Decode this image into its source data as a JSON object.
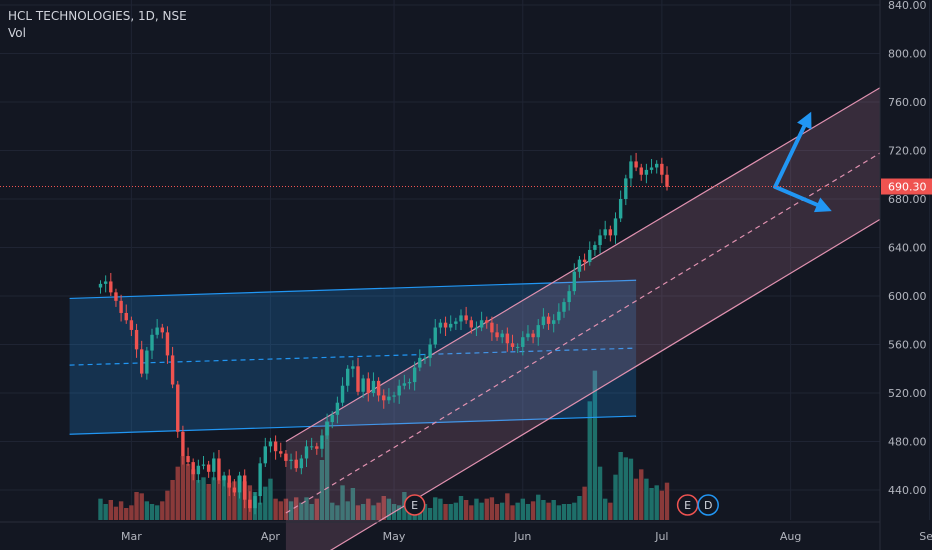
{
  "chart_data": {
    "type": "candlestick",
    "title": "HCL TECHNOLOGIES, 1D, NSE",
    "indicator": "Vol",
    "colors": {
      "background": "#131722",
      "grid": "#1f2433",
      "axis_text": "#b2b5be",
      "up": "#26a69a",
      "down": "#ef5350",
      "volume_up": "#1e6f69",
      "volume_down": "#8a3a3a",
      "blue_channel": "#2196f3",
      "pink_channel": "#e091b0",
      "arrow": "#2196f3",
      "price_line": "#ef5350"
    },
    "y_axis": {
      "ticks": [
        840,
        800,
        760,
        720,
        680,
        640,
        600,
        560,
        520,
        480,
        440
      ],
      "tick_labels": [
        "840.00",
        "800.00",
        "760.00",
        "720.00",
        "680.00",
        "640.00",
        "600.00",
        "560.00",
        "520.00",
        "480.00",
        "440.00"
      ],
      "range": [
        413,
        843
      ]
    },
    "x_axis": {
      "labels": [
        "Mar",
        "Apr",
        "May",
        "Jun",
        "Jul",
        "Aug",
        "Sep"
      ],
      "label_positions_day": [
        6,
        33,
        57,
        82,
        109,
        134,
        161
      ],
      "range_days": [
        -6,
        172
      ]
    },
    "last_price": {
      "value": 690.3,
      "label": "690.30"
    },
    "closes": [
      610,
      612,
      603,
      596,
      586,
      580,
      572,
      556,
      536,
      555,
      568,
      574,
      570,
      551,
      527,
      488,
      468,
      463,
      453,
      460,
      461,
      455,
      466,
      448,
      452,
      442,
      438,
      452,
      432,
      425,
      435,
      462,
      476,
      480,
      472,
      470,
      464,
      465,
      458,
      466,
      476,
      476,
      474,
      485,
      496,
      502,
      512,
      526,
      540,
      542,
      521,
      532,
      520,
      530,
      518,
      514,
      517,
      518,
      526,
      528,
      529,
      541,
      549,
      549,
      560,
      574,
      578,
      574,
      577,
      579,
      584,
      580,
      574,
      574,
      580,
      578,
      570,
      566,
      569,
      561,
      558,
      558,
      566,
      569,
      566,
      576,
      583,
      577,
      580,
      587,
      595,
      604,
      620,
      630,
      628,
      638,
      642,
      650,
      655,
      650,
      664,
      680,
      697,
      711,
      706,
      700,
      704,
      706,
      709,
      700,
      690
    ],
    "volumes": [
      16,
      12,
      15,
      10,
      14,
      9,
      11,
      21,
      20,
      14,
      12,
      11,
      14,
      22,
      30,
      40,
      48,
      42,
      38,
      30,
      32,
      27,
      32,
      30,
      33,
      28,
      29,
      33,
      29,
      26,
      21,
      13,
      25,
      31,
      16,
      14,
      16,
      14,
      17,
      13,
      17,
      12,
      16,
      45,
      74,
      13,
      11,
      26,
      14,
      24,
      11,
      12,
      16,
      11,
      13,
      18,
      16,
      12,
      11,
      21,
      13,
      16,
      17,
      12,
      9,
      17,
      16,
      12,
      12,
      13,
      18,
      15,
      11,
      16,
      13,
      16,
      17,
      12,
      13,
      20,
      11,
      13,
      16,
      12,
      14,
      19,
      15,
      13,
      15,
      11,
      12,
      12,
      13,
      18,
      25,
      89,
      112,
      40,
      16,
      13,
      34,
      51,
      47,
      46,
      31,
      38,
      31,
      24,
      26,
      22,
      28
    ],
    "volume_max": 120,
    "blue_channel": {
      "start_day": -6,
      "end_day": 104,
      "upper": [
        598,
        613
      ],
      "median": [
        543,
        557
      ],
      "lower": [
        486,
        501
      ]
    },
    "pink_channel": {
      "start_day": 36,
      "end_day": 172,
      "upper": [
        480,
        824
      ],
      "median": [
        421,
        771
      ],
      "lower": [
        368,
        716
      ]
    },
    "arrows": [
      {
        "from_day": 131,
        "from_price": 690,
        "to_day": 138,
        "to_price": 752
      },
      {
        "from_day": 131,
        "from_price": 690,
        "to_day": 142,
        "to_price": 670
      }
    ],
    "events": [
      {
        "label": "E",
        "day": 61
      },
      {
        "label": "E",
        "day": 114
      },
      {
        "label": "D",
        "day": 118
      }
    ]
  }
}
